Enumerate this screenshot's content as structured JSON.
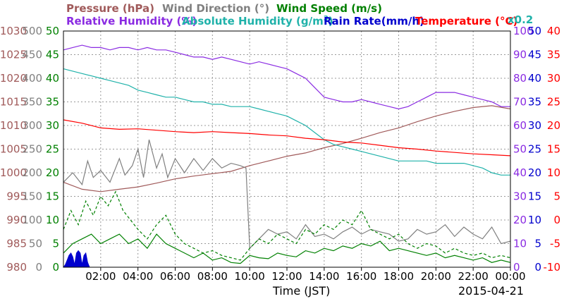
{
  "header": {
    "pressure": "Pressure (hPa)",
    "wind_direction": "Wind Direction (°)",
    "wind_speed": "Wind Speed (m/s)",
    "rel_humidity": "Relative Humidity (%)",
    "abs_humidity_pre": "Absolute Humidity (g/m",
    "abs_humidity_sup": "3",
    "abs_humidity_post": ")",
    "rain_rate": "Rain Rate(mm/h)",
    "temperature": "Temperature (°C)",
    "scale_note": "x0.2"
  },
  "x_axis": {
    "label": "Time (JST)",
    "date": "2015-04-21",
    "ticks": [
      "02:00",
      "04:00",
      "06:00",
      "08:00",
      "10:00",
      "12:00",
      "14:00",
      "16:00",
      "18:00",
      "20:00",
      "22:00",
      "00:00"
    ],
    "tick_hours": [
      2,
      4,
      6,
      8,
      10,
      12,
      14,
      16,
      18,
      20,
      22,
      24
    ]
  },
  "colors": {
    "pressure": "#a05a5a",
    "wind_direction": "#808080",
    "wind_speed": "#008000",
    "rel_humidity": "#8a2be2",
    "abs_humidity": "#20b2aa",
    "rain_rate": "#0000cd",
    "temperature": "#ff0000"
  },
  "chart_data": {
    "type": "line",
    "x_unit": "hour (JST)",
    "xlim": [
      0,
      24
    ],
    "grid": true,
    "axes": {
      "pressure": {
        "ylim": [
          980,
          1030
        ],
        "ticks": [
          "1030",
          "1025",
          "1020",
          "1015",
          "1010",
          "1005",
          "1000",
          "995",
          "990",
          "985",
          "980"
        ]
      },
      "wind_direction": {
        "ylim": [
          0,
          500
        ],
        "ticks": [
          "500",
          "450",
          "400",
          "350",
          "300",
          "250",
          "200",
          "150",
          "100",
          "50",
          "0"
        ]
      },
      "wind_speed": {
        "ylim": [
          0,
          50
        ],
        "ticks": [
          "50",
          "45",
          "40",
          "35",
          "30",
          "25",
          "20",
          "15",
          "10",
          "5",
          "0"
        ]
      },
      "humidity": {
        "ylim": [
          0,
          100
        ],
        "ticks": [
          "100",
          "90",
          "80",
          "70",
          "60",
          "50",
          "40",
          "30",
          "20",
          "10",
          "0"
        ]
      },
      "rain_rate": {
        "ylim": [
          0,
          50
        ],
        "ticks": [
          "50",
          "45",
          "40",
          "35",
          "30",
          "25",
          "20",
          "15",
          "10",
          "5",
          "0"
        ]
      },
      "temperature": {
        "ylim": [
          -10,
          40
        ],
        "ticks": [
          "40",
          "35",
          "30",
          "25",
          "20",
          "15",
          "10",
          "5",
          "0",
          "-5",
          "-10"
        ]
      }
    },
    "series": [
      {
        "name": "Pressure (hPa)",
        "key": "pressure",
        "axis": "pressure",
        "style": "solid",
        "x": [
          0,
          1,
          2,
          3,
          4,
          5,
          6,
          7,
          8,
          9,
          10,
          11,
          12,
          13,
          14,
          15,
          16,
          17,
          18,
          19,
          20,
          21,
          22,
          23,
          24
        ],
        "y": [
          998,
          996.5,
          996,
          996.5,
          997,
          997.8,
          998.7,
          999.3,
          999.8,
          1000.3,
          1001.5,
          1002.5,
          1003.5,
          1004.2,
          1005.3,
          1006.2,
          1007.3,
          1008.5,
          1009.5,
          1010.8,
          1012,
          1013,
          1013.8,
          1014.2,
          1013.5
        ]
      },
      {
        "name": "Wind Direction (°)",
        "key": "wind_direction",
        "axis": "wind_direction",
        "style": "solid",
        "x": [
          0,
          0.5,
          1,
          1.3,
          1.6,
          2,
          2.5,
          3,
          3.3,
          3.7,
          4,
          4.3,
          4.6,
          5,
          5.3,
          5.6,
          6,
          6.5,
          7,
          7.5,
          8,
          8.5,
          9,
          9.5,
          9.8,
          10,
          10.5,
          11,
          11.5,
          12,
          12.5,
          13,
          13.5,
          14,
          14.5,
          15,
          15.5,
          16,
          16.5,
          17,
          17.5,
          18,
          18.5,
          19,
          19.5,
          20,
          20.5,
          21,
          21.5,
          22,
          22.5,
          23,
          23.5,
          24
        ],
        "y": [
          180,
          200,
          175,
          225,
          190,
          205,
          180,
          230,
          195,
          215,
          250,
          190,
          270,
          210,
          240,
          190,
          230,
          200,
          230,
          205,
          230,
          210,
          220,
          215,
          210,
          40,
          60,
          80,
          70,
          75,
          60,
          90,
          65,
          70,
          60,
          75,
          85,
          70,
          80,
          75,
          70,
          55,
          60,
          80,
          70,
          75,
          90,
          65,
          85,
          70,
          60,
          85,
          50,
          55
        ]
      },
      {
        "name": "Wind Speed (m/s)",
        "key": "wind_speed",
        "axis": "wind_speed",
        "style": "solid",
        "x": [
          0,
          0.5,
          1,
          1.5,
          2,
          2.5,
          3,
          3.5,
          4,
          4.5,
          5,
          5.5,
          6,
          6.5,
          7,
          7.5,
          8,
          8.5,
          9,
          9.5,
          10,
          10.5,
          11,
          11.5,
          12,
          12.5,
          13,
          13.5,
          14,
          14.5,
          15,
          15.5,
          16,
          16.5,
          17,
          17.5,
          18,
          18.5,
          19,
          19.5,
          20,
          20.5,
          21,
          21.5,
          22,
          22.5,
          23,
          23.5,
          24
        ],
        "y": [
          3,
          5,
          6,
          7,
          5,
          6,
          7,
          5,
          6,
          4,
          7,
          5,
          4,
          3,
          2,
          3,
          1.5,
          2,
          1,
          0.8,
          2.5,
          2,
          1.8,
          3,
          2.5,
          2.2,
          3.5,
          3,
          4,
          3.5,
          4.5,
          4,
          5,
          4.5,
          5.5,
          3.5,
          4,
          3.5,
          3,
          2.5,
          3,
          2,
          2.5,
          2,
          1.5,
          2,
          1,
          1.5,
          1
        ]
      },
      {
        "name": "Wind Speed (m/s)",
        "key": "wind_speed_gust",
        "axis": "wind_speed",
        "style": "dashed",
        "x": [
          0,
          0.4,
          0.8,
          1.2,
          1.6,
          2,
          2.4,
          2.8,
          3.2,
          3.6,
          4,
          4.5,
          5,
          5.5,
          6,
          6.5,
          7,
          7.5,
          8,
          8.5,
          9,
          9.5,
          10,
          10.5,
          11,
          11.5,
          12,
          12.5,
          13,
          13.5,
          14,
          14.5,
          15,
          15.5,
          16,
          16.5,
          17,
          17.5,
          18,
          18.5,
          19,
          19.5,
          20,
          20.5,
          21,
          21.5,
          22,
          22.5,
          23,
          23.5,
          24
        ],
        "y": [
          8,
          12,
          9,
          14,
          11,
          15,
          13,
          16,
          12,
          10,
          8,
          6,
          9,
          11,
          7,
          5,
          4,
          3,
          3.5,
          2.5,
          2,
          1.5,
          4,
          6,
          5,
          7,
          6,
          5,
          8,
          7,
          9,
          8,
          10,
          9,
          12,
          8,
          7,
          6,
          7,
          5,
          4,
          5,
          4.5,
          3,
          4,
          3,
          2.5,
          3,
          2,
          2.5,
          2
        ]
      },
      {
        "name": "Relative Humidity (%)",
        "key": "rel_humidity",
        "axis": "humidity",
        "style": "solid",
        "x": [
          0,
          0.5,
          1,
          1.5,
          2,
          2.5,
          3,
          3.5,
          4,
          4.5,
          5,
          5.5,
          6,
          6.5,
          7,
          7.5,
          8,
          8.5,
          9,
          9.5,
          10,
          10.5,
          11,
          11.5,
          12,
          12.5,
          13,
          13.5,
          14,
          14.5,
          15,
          15.5,
          16,
          16.5,
          17,
          17.5,
          18,
          18.5,
          19,
          19.5,
          20,
          20.5,
          21,
          21.5,
          22,
          22.5,
          23,
          23.5,
          24
        ],
        "y": [
          92,
          93,
          94,
          93,
          93,
          92,
          93,
          93,
          92,
          93,
          92,
          92,
          91,
          90,
          89,
          89,
          88,
          89,
          88,
          87,
          86,
          87,
          86,
          85,
          84,
          82,
          80,
          76,
          72,
          71,
          70,
          70,
          71,
          70,
          69,
          68,
          67,
          68,
          70,
          72,
          74,
          74,
          74,
          73,
          72,
          71,
          70,
          68,
          68
        ]
      },
      {
        "name": "Absolute Humidity (g/m3)",
        "key": "abs_humidity",
        "axis": "humidity",
        "style": "solid",
        "x": [
          0,
          0.5,
          1,
          1.5,
          2,
          2.5,
          3,
          3.5,
          4,
          4.5,
          5,
          5.5,
          6,
          6.5,
          7,
          7.5,
          8,
          8.5,
          9,
          9.5,
          10,
          10.5,
          11,
          11.5,
          12,
          12.5,
          13,
          13.5,
          14,
          14.5,
          15,
          15.5,
          16,
          16.5,
          17,
          17.5,
          18,
          18.5,
          19,
          19.5,
          20,
          20.5,
          21,
          21.5,
          22,
          22.5,
          23,
          23.5,
          24
        ],
        "y": [
          84,
          83,
          82,
          81,
          80,
          79,
          78,
          77,
          75,
          74,
          73,
          72,
          72,
          71,
          70,
          70,
          69,
          69,
          68,
          68,
          68,
          67,
          66,
          65,
          64,
          62,
          60,
          57,
          54,
          52,
          51,
          50,
          49,
          48,
          47,
          46,
          45,
          45,
          45,
          45,
          44,
          44,
          44,
          44,
          43,
          42,
          40,
          39,
          39
        ]
      },
      {
        "name": "Rain Rate(mm/h)",
        "key": "rain_rate",
        "axis": "rain_rate",
        "style": "filled",
        "x": [
          0,
          0.1,
          0.2,
          0.3,
          0.4,
          0.5,
          0.6,
          0.7,
          0.8,
          0.9,
          1.0,
          1.1,
          1.2,
          1.3,
          1.4
        ],
        "y": [
          0,
          0.5,
          1.5,
          2.5,
          3,
          2.2,
          0.5,
          3,
          3.5,
          3,
          0.5,
          2.5,
          3,
          1,
          0
        ]
      },
      {
        "name": "Temperature (°C)",
        "key": "temperature",
        "axis": "temperature",
        "style": "solid",
        "x": [
          0,
          1,
          2,
          3,
          4,
          5,
          6,
          7,
          8,
          9,
          10,
          11,
          12,
          13,
          14,
          15,
          16,
          17,
          18,
          19,
          20,
          21,
          22,
          23,
          24
        ],
        "y": [
          21.2,
          20.5,
          19.5,
          19.2,
          19.3,
          19,
          18.7,
          18.5,
          18.7,
          18.5,
          18.3,
          18,
          17.8,
          17.3,
          17,
          16.5,
          16.3,
          15.8,
          15.3,
          15,
          14.6,
          14.3,
          14,
          13.8,
          13.6
        ]
      }
    ]
  }
}
